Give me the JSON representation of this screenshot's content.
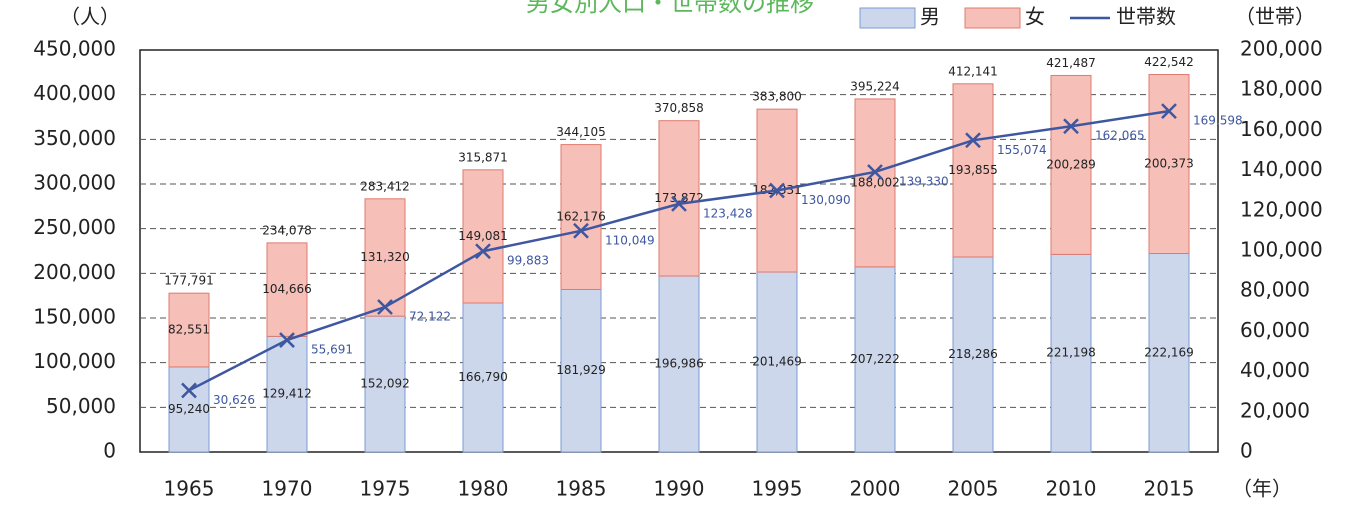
{
  "chart_data": {
    "type": "bar",
    "title": "男女別人口・世帯数の推移",
    "y_unit": "（人）",
    "y2_unit": "（世帯）",
    "x_unit": "（年）",
    "categories": [
      "1965",
      "1970",
      "1975",
      "1980",
      "1985",
      "1990",
      "1995",
      "2000",
      "2005",
      "2010",
      "2015"
    ],
    "series": [
      {
        "name": "男",
        "color": "#cdd7ec",
        "edge": "#7b9bd4",
        "values": [
          95240,
          129412,
          152092,
          166790,
          181929,
          196986,
          201469,
          207222,
          218286,
          221198,
          222169
        ],
        "value_labels": [
          "95,240",
          "129,412",
          "152,092",
          "166,790",
          "181,929",
          "196,986",
          "201,469",
          "207,222",
          "218,286",
          "221,198",
          "222,169"
        ]
      },
      {
        "name": "女",
        "color": "#f6c0b8",
        "edge": "#e07a6e",
        "values": [
          82551,
          104666,
          131320,
          149081,
          162176,
          173872,
          182331,
          188002,
          193855,
          200289,
          200373
        ],
        "value_labels": [
          "82,551",
          "104,666",
          "131,320",
          "149,081",
          "162,176",
          "173,872",
          "182,331",
          "188,002",
          "193,855",
          "200,289",
          "200,373"
        ]
      },
      {
        "name": "世帯数",
        "color": "#3e57a0",
        "axis": "y2",
        "type": "line",
        "values": [
          30626,
          55691,
          72122,
          99883,
          110049,
          123428,
          130090,
          139330,
          155074,
          162065,
          169598
        ],
        "value_labels": [
          "30,626",
          "55,691",
          "72,122",
          "99,883",
          "110,049",
          "123,428",
          "130,090",
          "139,330",
          "155,074",
          "162,065",
          "169,598"
        ]
      }
    ],
    "total_labels": [
      "177,791",
      "234,078",
      "283,412",
      "315,871",
      "344,105",
      "370,858",
      "383,800",
      "395,224",
      "412,141",
      "421,487",
      "422,542"
    ],
    "ylim": [
      0,
      450000
    ],
    "yticks": [
      0,
      {
        "value": 50000,
        "label": "50,000"
      },
      {
        "value": 100000,
        "label": "100,000"
      },
      {
        "value": 150000,
        "label": "150,000"
      },
      {
        "value": 200000,
        "label": "200,000"
      },
      {
        "value": 250000,
        "label": "250,000"
      },
      {
        "value": 300000,
        "label": "300,000"
      },
      {
        "value": 350000,
        "label": "350,000"
      },
      {
        "value": 400000,
        "label": "400,000"
      },
      {
        "value": 450000,
        "label": "450,000"
      }
    ],
    "y2lim": [
      0,
      200000
    ],
    "y2ticks": [
      0,
      {
        "value": 20000,
        "label": "20,000"
      },
      {
        "value": 40000,
        "label": "40,000"
      },
      {
        "value": 60000,
        "label": "60,000"
      },
      {
        "value": 80000,
        "label": "80,000"
      },
      {
        "value": 100000,
        "label": "100,000"
      },
      {
        "value": 120000,
        "label": "120,000"
      },
      {
        "value": 140000,
        "label": "140,000"
      },
      {
        "value": 160000,
        "label": "160,000"
      },
      {
        "value": 180000,
        "label": "180,000"
      },
      {
        "value": 200000,
        "label": "200,000"
      }
    ],
    "grid": true,
    "title_color": "#5cb85c"
  }
}
